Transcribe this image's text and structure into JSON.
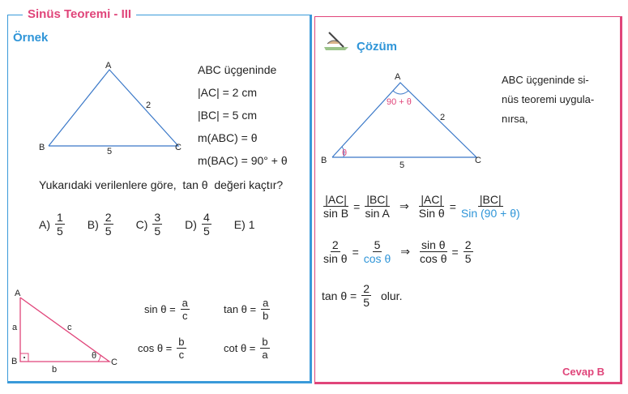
{
  "section_title": "Sinüs Teoremi - III",
  "example": {
    "heading": "Örnek",
    "triangle": {
      "A": "A",
      "B": "B",
      "C": "C",
      "side_ac": "2",
      "side_bc": "5"
    },
    "givens": [
      "ABC üçgeninde",
      "|AC| = 2 cm",
      "|BC| = 5 cm",
      "m(ABC) = θ",
      "m(BAC) = 90° + θ"
    ],
    "question": "Yukarıdaki verilenlere göre,  tan θ  değeri kaçtır?",
    "options": [
      {
        "label": "A)",
        "num": "1",
        "den": "5"
      },
      {
        "label": "B)",
        "num": "2",
        "den": "5"
      },
      {
        "label": "C)",
        "num": "3",
        "den": "5"
      },
      {
        "label": "D)",
        "num": "4",
        "den": "5"
      },
      {
        "label": "E)",
        "value": "1"
      }
    ]
  },
  "reference": {
    "triangle": {
      "A": "A",
      "B": "B",
      "C": "C",
      "a": "a",
      "b": "b",
      "c": "c",
      "angle": "θ"
    },
    "formulas": [
      {
        "lhs": "sin θ =",
        "num": "a",
        "den": "c"
      },
      {
        "lhs": "tan θ =",
        "num": "a",
        "den": "b"
      },
      {
        "lhs": "cos θ =",
        "num": "b",
        "den": "c"
      },
      {
        "lhs": "cot θ =",
        "num": "b",
        "den": "a"
      }
    ]
  },
  "solution": {
    "heading": "Çözüm",
    "triangle": {
      "A": "A",
      "B": "B",
      "C": "C",
      "side_ac": "2",
      "side_bc": "5",
      "angle_a": "90 + θ",
      "angle_b": "θ"
    },
    "intro": [
      "ABC  üçgeninde si-",
      "nüs teoremi uygula-",
      "nırsa,"
    ],
    "line1": {
      "f1n": "|AC|",
      "f1d": "sin B",
      "f2n": "|BC|",
      "f2d": "sin A",
      "f3n": "|AC|",
      "f3d": "Sin θ",
      "f4n": "|BC|",
      "f4d": "Sin (90 + θ)"
    },
    "line2": {
      "f1n": "2",
      "f1d": "sin θ",
      "f2n": "5",
      "f2d": "cos θ",
      "f3n": "sin θ",
      "f3d": "cos θ",
      "f4n": "2",
      "f4d": "5"
    },
    "line3": {
      "lhs": "tan θ =",
      "num": "2",
      "den": "5",
      "suffix": "olur."
    },
    "eq": "=",
    "implies": "⇒",
    "answer": "Cevap B"
  },
  "colors": {
    "blue": "#2f95d8",
    "pink": "#e0457a"
  }
}
